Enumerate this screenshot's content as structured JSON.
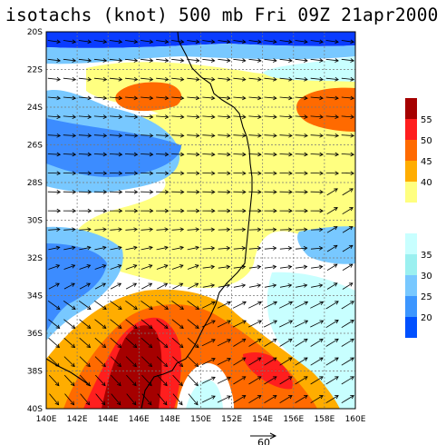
{
  "title": "isotachs (knot) 500 mb Fri 09Z 21apr2000",
  "map": {
    "lon_labels": [
      "140E",
      "142E",
      "144E",
      "146E",
      "148E",
      "150E",
      "152E",
      "154E",
      "156E",
      "158E",
      "160E"
    ],
    "lat_labels": [
      "20S",
      "22S",
      "24S",
      "26S",
      "28S",
      "30S",
      "32S",
      "34S",
      "36S",
      "38S",
      "40S"
    ],
    "lon_range": [
      140,
      160
    ],
    "lat_range": [
      -40,
      -20
    ]
  },
  "legend": {
    "upper": {
      "labels": [
        "55",
        "50",
        "45",
        "40"
      ],
      "colors": [
        "#a50000",
        "#ff1e1e",
        "#ff6a00",
        "#ffad00",
        "#ffff80"
      ]
    },
    "lower": {
      "labels": [
        "35",
        "30",
        "25",
        "20"
      ],
      "colors": [
        "#c8ffff",
        "#9bf0f0",
        "#78c8ff",
        "#3c96ff",
        "#0050ff"
      ]
    }
  },
  "reference_vector": {
    "label": "60"
  },
  "colors": {
    "navy": "#0a3cff",
    "blue": "#3c8cff",
    "lightblue": "#78c8ff",
    "cyan": "#c8ffff",
    "white": "#ffffff",
    "yellow": "#ffff80",
    "gold": "#ffad00",
    "orange": "#ff6a00",
    "red": "#ff1e1e",
    "darkred": "#a50000"
  }
}
